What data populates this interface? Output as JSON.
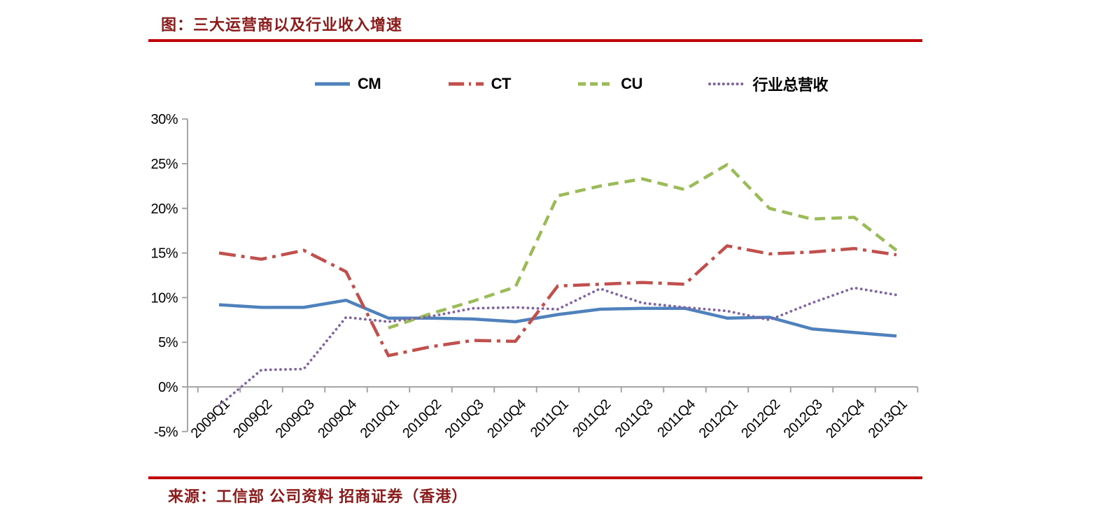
{
  "page": {
    "title": "图：三大运营商以及行业收入增速",
    "source": "来源：工信部 公司资料 招商证券（香港）"
  },
  "accent": {
    "rule_color": "#C00000",
    "title_color": "#8B1A1A"
  },
  "chart_data": {
    "type": "line",
    "title": "三大运营商以及行业收入增速",
    "xlabel": "",
    "ylabel": "",
    "ylim": [
      -5,
      30
    ],
    "grid": false,
    "legend_position": "top",
    "y_ticks": [
      "30%",
      "25%",
      "20%",
      "15%",
      "10%",
      "5%",
      "0%",
      "-5%"
    ],
    "categories": [
      "2009Q1",
      "2009Q2",
      "2009Q3",
      "2009Q4",
      "2010Q1",
      "2010Q2",
      "2010Q3",
      "2010Q4",
      "2011Q1",
      "2011Q2",
      "2011Q3",
      "2011Q4",
      "2012Q1",
      "2012Q2",
      "2012Q3",
      "2012Q4",
      "2013Q1"
    ],
    "series": [
      {
        "name": "CM",
        "color": "#4F81BD",
        "style": "solid",
        "values": [
          9.2,
          8.9,
          8.9,
          9.7,
          7.7,
          7.7,
          7.6,
          7.3,
          8.1,
          8.7,
          8.8,
          8.8,
          7.7,
          7.8,
          6.5,
          6.1,
          5.7
        ]
      },
      {
        "name": "CT",
        "color": "#C0504D",
        "style": "dash-dot",
        "values": [
          15.0,
          14.3,
          15.3,
          12.9,
          3.5,
          4.5,
          5.2,
          5.1,
          11.3,
          11.5,
          11.7,
          11.5,
          15.8,
          14.9,
          15.1,
          15.5,
          14.8
        ]
      },
      {
        "name": "CU",
        "color": "#9BBB59",
        "style": "dashed",
        "values": [
          null,
          null,
          null,
          null,
          6.6,
          8.2,
          9.6,
          11.2,
          21.4,
          22.5,
          23.3,
          22.1,
          24.9,
          20.0,
          18.8,
          19.0,
          15.3
        ]
      },
      {
        "name": "行业总营收",
        "color": "#8064A2",
        "style": "dotted",
        "values": [
          -2.1,
          1.9,
          2.0,
          7.8,
          7.3,
          7.9,
          8.8,
          8.9,
          8.7,
          11.0,
          9.4,
          8.9,
          8.5,
          7.5,
          9.4,
          11.1,
          10.3
        ]
      }
    ]
  }
}
